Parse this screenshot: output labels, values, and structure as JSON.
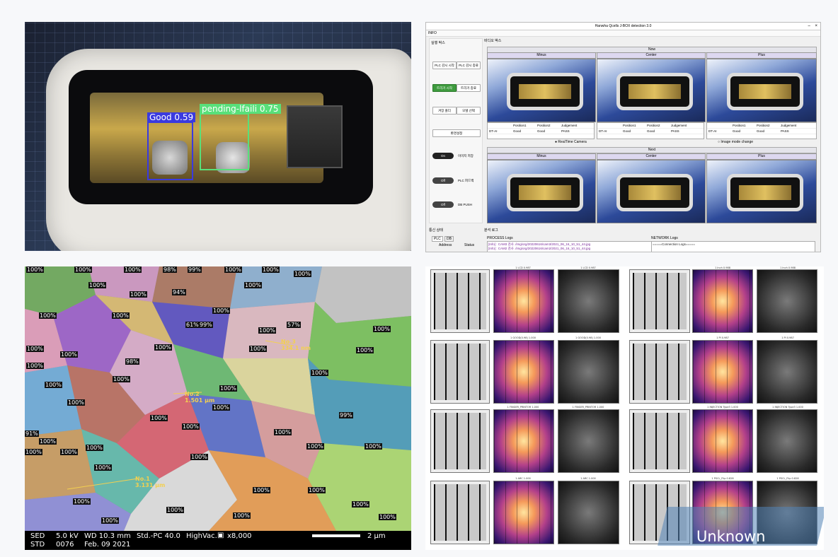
{
  "panel1": {
    "detections": [
      {
        "label": "Good 0.59",
        "color": "#3a3adf"
      },
      {
        "label": "pending-lfaili 0.75",
        "color": "#58e07a"
      }
    ]
  },
  "app": {
    "title": "Hanwha Qcells J-BOX detection 3.0",
    "menu": "INFO",
    "left_header": "실행 박스",
    "buttons": {
      "plc_start": "PLC 감시 시작",
      "plc_stop": "PLC 감시 종료",
      "trigger_start": "트리거 시작",
      "trigger_stop": "트리거 종료",
      "folder_open": "겨장 폴더",
      "model_select": "모델 선택",
      "env_settings": "환경설정"
    },
    "toggles": [
      {
        "state": "On",
        "label": "이미지 저장"
      },
      {
        "state": "Off",
        "label": "PLC 피드백"
      },
      {
        "state": "Off",
        "label": "DB PUSH"
      }
    ],
    "video_box": "비디오 박스",
    "now_label": "Now",
    "next_label": "Next",
    "cams": [
      "Minus",
      "Center",
      "Plus"
    ],
    "table_headers": [
      "Position1",
      "Position2",
      "Judgement"
    ],
    "table_rows": [
      {
        "name": "DT-AI",
        "p1": "Good",
        "p2": "Good",
        "j": "PASS"
      },
      {
        "name": "DT-AI",
        "p1": "Good",
        "p2": "Good",
        "j": "PASS"
      },
      {
        "name": "DT-AI",
        "p1": "Good",
        "p2": "Good",
        "j": "PASS"
      }
    ],
    "realtime_camera": "RealTime Camera",
    "image_mode_change": "Image mode change",
    "comm_status": "통신 상태",
    "tabs": [
      "PLC",
      "DB"
    ],
    "status_cols": [
      "Address",
      "Status"
    ],
    "analysis_logs": "분석 로그",
    "process_logs": "PROCESS Logs",
    "network_logs": "NETWORK Logs",
    "log_lines": [
      "[Info] : CAM3 검사 ./img/org/20220616/cam3/2021_06_16_10_51_44.jpg",
      "[Info] : CAM2 검사 ./img/org/20220616/cam2/2021_06_16_10_51_44.jpg"
    ],
    "network_line": "=====Connection Logs====="
  },
  "sem": {
    "labels": [
      "100%",
      "100%",
      "100%",
      "98%",
      "99%",
      "100%",
      "100%",
      "100%",
      "100%",
      "94%",
      "100%",
      "100%",
      "100%",
      "100%",
      "100%",
      "61%",
      "99%",
      "100%",
      "100%",
      "57%",
      "100%",
      "100%",
      "98%",
      "100%",
      "100%",
      "100%",
      "100%",
      "100%",
      "100%",
      "100%",
      "100%",
      "100%",
      "100%",
      "91%",
      "100%",
      "100%",
      "100%",
      "100%",
      "100%",
      "100%",
      "100%",
      "100%",
      "99%",
      "100%",
      "100%",
      "100%",
      "100%",
      "100%",
      "100%",
      "100%",
      "100%",
      "100%",
      "100%",
      "100%"
    ],
    "measurements": [
      {
        "no": "No.3",
        "val": "334.1 nm"
      },
      {
        "no": "No.2",
        "val": "1.501 µm"
      },
      {
        "no": "No.1",
        "val": "3.131 µm"
      }
    ],
    "footer": {
      "sed": "SED",
      "kv": "5.0 kV",
      "wd": "WD 10.3 mm",
      "std_pc": "Std.-PC 40.0",
      "vac": "HighVac.",
      "mag": "x8,000",
      "std": "STD",
      "num": "0076",
      "date": "Feb. 09 2021",
      "scale": "2 µm"
    }
  },
  "el": {
    "captions_left": [
      "1 LCD 0.987",
      "1 GOOD(0.98) 1.000",
      "1 FINGER_PRINTOR 1.000",
      "1 ARC 1.000"
    ],
    "captions_right": [
      "1 Inch 0.988",
      "1 PI 0.987",
      "1 INJECTION Type3 1.000",
      "1 PSCL_Flip 0.828"
    ],
    "unknown": "Unknown"
  }
}
